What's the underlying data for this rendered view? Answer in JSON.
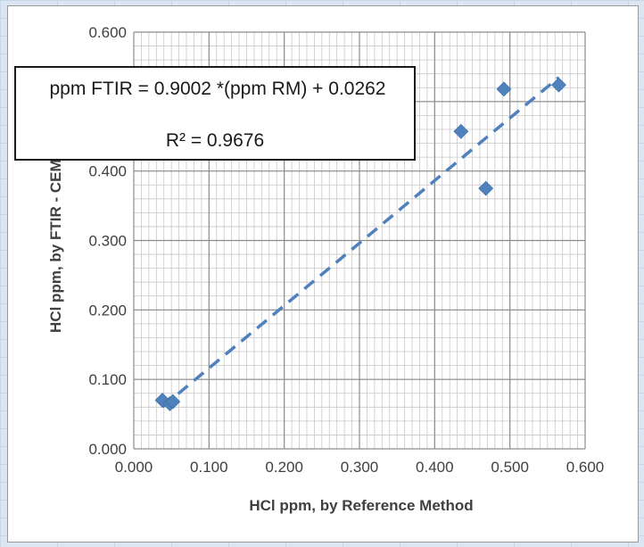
{
  "chart_data": {
    "type": "scatter",
    "xlabel": "HCl ppm, by Reference Method",
    "ylabel": "HCl ppm, by FTIR - CEMS",
    "xlim": [
      0,
      0.6
    ],
    "ylim": [
      0,
      0.6
    ],
    "x_ticks": [
      "0.000",
      "0.100",
      "0.200",
      "0.300",
      "0.400",
      "0.500",
      "0.600"
    ],
    "y_ticks": [
      "0.000",
      "0.100",
      "0.200",
      "0.300",
      "0.400",
      "0.500",
      "0.600"
    ],
    "grid": true,
    "series": [
      {
        "points": [
          {
            "x": 0.038,
            "y": 0.07
          },
          {
            "x": 0.048,
            "y": 0.065
          },
          {
            "x": 0.052,
            "y": 0.068
          },
          {
            "x": 0.435,
            "y": 0.457
          },
          {
            "x": 0.468,
            "y": 0.375
          },
          {
            "x": 0.492,
            "y": 0.518
          },
          {
            "x": 0.565,
            "y": 0.524
          }
        ],
        "marker": "diamond",
        "color": "#4f81bd"
      }
    ],
    "trendline": {
      "type": "linear",
      "slope": 0.9002,
      "intercept": 0.0262,
      "x_range": [
        0.038,
        0.565
      ],
      "style": "dashed",
      "color": "#4f81bd"
    },
    "annotation": {
      "equation": "ppm FTIR = 0.9002  *(ppm RM) + 0.0262",
      "r_squared": "R² = 0.9676"
    }
  }
}
